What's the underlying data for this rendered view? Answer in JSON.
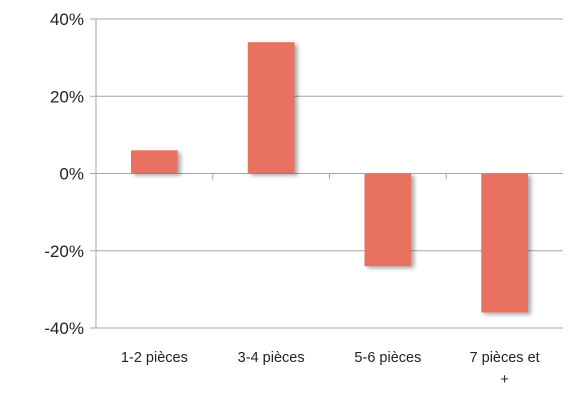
{
  "chart_data": {
    "type": "bar",
    "categories": [
      "1-2 pièces",
      "3-4 pièces",
      "5-6 pièces",
      "7 pièces et +"
    ],
    "category_label_lines": [
      [
        "1-2 pièces"
      ],
      [
        "3-4 pièces"
      ],
      [
        "5-6 pièces"
      ],
      [
        "7 pièces et",
        "+"
      ]
    ],
    "values": [
      6,
      34,
      -24,
      -36
    ],
    "value_unit": "%",
    "ylim": [
      -40,
      40
    ],
    "yticks": [
      -40,
      -20,
      0,
      20,
      40
    ],
    "ytick_labels": [
      "-40%",
      "-20%",
      "0%",
      "20%",
      "40%"
    ],
    "title": "",
    "xlabel": "",
    "ylabel": "",
    "grid": true,
    "legend": "none",
    "colors": {
      "bar": "#E97161",
      "grid": "#A6A6A6",
      "axis": "#A6A6A6",
      "text": "#222222"
    }
  }
}
